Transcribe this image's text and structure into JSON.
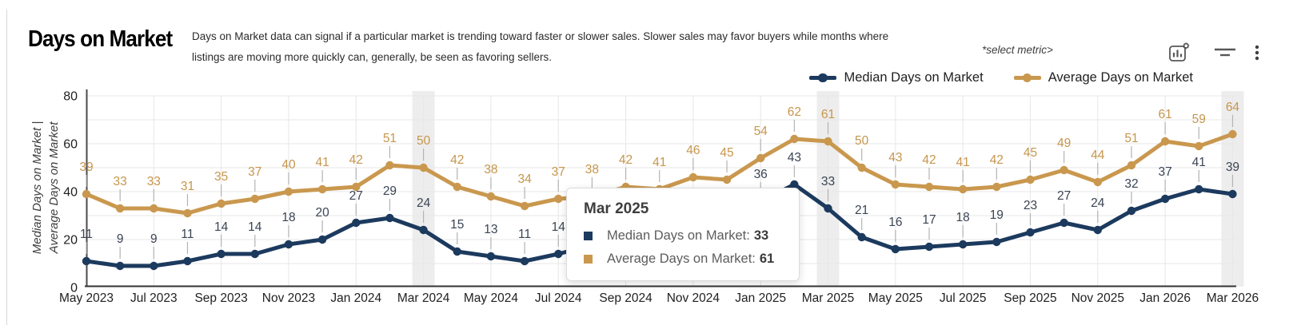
{
  "header": {
    "title": "Days on Market",
    "description": "Days on Market data can signal if a particular market is trending toward faster or slower sales.  Slower sales may favor buyers while months where listings are moving more quickly can, generally, be seen as favoring sellers.",
    "select_metric": "*select metric>"
  },
  "legend": [
    {
      "label": "Median Days on Market",
      "color": "#1C3A5E"
    },
    {
      "label": "Average Days on Market",
      "color": "#C9984E"
    }
  ],
  "y_axis": {
    "title_line1": "Median Days on Market |",
    "title_line2": "Average Days on Market",
    "ticks": [
      0,
      20,
      40,
      60,
      80
    ]
  },
  "tooltip": {
    "title": "Mar 2025",
    "rows": [
      {
        "label": "Median Days on Market:",
        "value": "33",
        "color": "#1C3A5E"
      },
      {
        "label": "Average Days on Market:",
        "value": "61",
        "color": "#C9984E"
      }
    ]
  },
  "chart_data": {
    "type": "line",
    "title": "Days on Market",
    "x": [
      "May 2023",
      "Jun 2023",
      "Jul 2023",
      "Aug 2023",
      "Sep 2023",
      "Oct 2023",
      "Nov 2023",
      "Dec 2023",
      "Jan 2024",
      "Feb 2024",
      "Mar 2024",
      "Apr 2024",
      "May 2024",
      "Jun 2024",
      "Jul 2024",
      "Aug 2024",
      "Sep 2024",
      "Oct 2024",
      "Nov 2024",
      "Dec 2024",
      "Jan 2025",
      "Feb 2025",
      "Mar 2025",
      "Apr 2025",
      "May 2025",
      "Jun 2025",
      "Jul 2025",
      "Aug 2025",
      "Sep 2025",
      "Oct 2025",
      "Nov 2025",
      "Dec 2025",
      "Jan 2026",
      "Feb 2026",
      "Mar 2026"
    ],
    "x_tick_step": 2,
    "series": [
      {
        "name": "Average Days on Market",
        "color": "#C9984E",
        "label_color": "#C6964C",
        "values": [
          39,
          33,
          33,
          31,
          35,
          37,
          40,
          41,
          42,
          51,
          50,
          42,
          38,
          34,
          37,
          38,
          42,
          41,
          46,
          45,
          54,
          62,
          61,
          50,
          43,
          42,
          41,
          42,
          45,
          49,
          44,
          51,
          61,
          59,
          64
        ]
      },
      {
        "name": "Median Days on Market",
        "color": "#1C3A5E",
        "label_color": "#3A4454",
        "values": [
          11,
          9,
          9,
          11,
          14,
          14,
          18,
          20,
          27,
          29,
          24,
          15,
          13,
          11,
          14,
          null,
          null,
          null,
          null,
          null,
          36,
          43,
          33,
          21,
          16,
          17,
          18,
          19,
          23,
          27,
          24,
          32,
          37,
          41,
          39
        ]
      }
    ],
    "ylim": [
      0,
      80
    ],
    "ylabel": "Median Days on Market | Average Days on Market",
    "grid": true,
    "legend_position": "top-right",
    "highlight_x": [
      "Mar 2024",
      "Mar 2025",
      "Mar 2026"
    ],
    "highlight_color": "#EDEDED"
  }
}
